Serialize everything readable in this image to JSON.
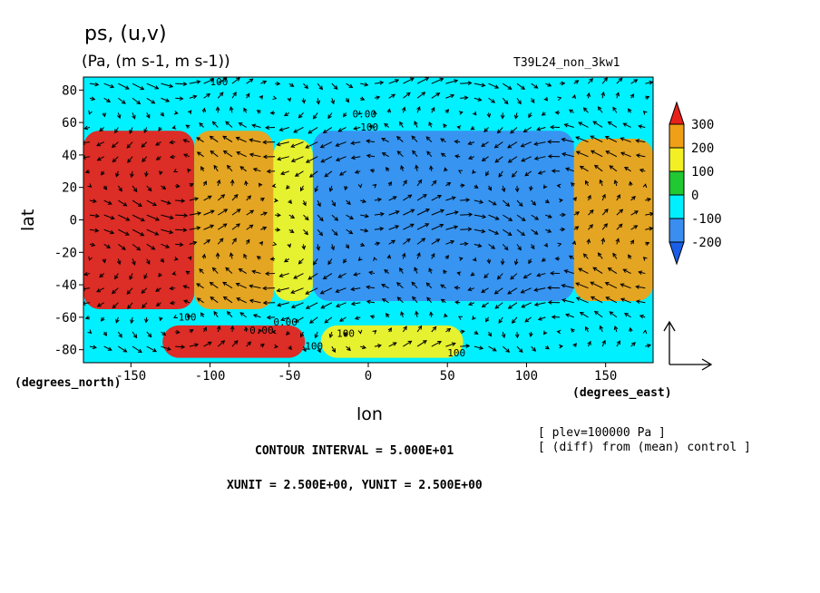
{
  "header": {
    "title": "ps, (u,v)",
    "units": "(Pa, (m s-1, m s-1))",
    "run": "T39L24_non_3kw1"
  },
  "footer": {
    "contour_interval": "CONTOUR INTERVAL = 5.000E+01",
    "units_line": "XUNIT = 2.500E+00, YUNIT = 2.500E+00",
    "plev": "[ plev=100000 Pa ]",
    "diff": "[ (diff) from (mean) control ]"
  },
  "chart_data": {
    "type": "heatmap",
    "title": "ps, (u,v)",
    "subtitle": "(Pa, (m s-1, m s-1))",
    "xlabel": "lon",
    "ylabel": "lat",
    "xunit_label": "(degrees_east)",
    "yunit_label": "(degrees_north)",
    "xlim": [
      -180,
      180
    ],
    "ylim": [
      -88,
      88
    ],
    "xticks": [
      -150,
      -100,
      -50,
      0,
      50,
      100,
      150
    ],
    "yticks": [
      80,
      60,
      40,
      20,
      0,
      -20,
      -40,
      -60,
      -80
    ],
    "colorbar": {
      "levels": [
        300,
        200,
        100,
        0,
        -100,
        -200
      ],
      "colors": [
        "#e8221a",
        "#f0a017",
        "#f2f025",
        "#20c832",
        "#00f0ff",
        "#3a8ef0",
        "#1a5ee8"
      ]
    },
    "contour_labels": [
      "100",
      "0.00",
      "100",
      "100",
      "100",
      "0.00",
      "0.00",
      "100",
      "100"
    ],
    "field_regions": [
      {
        "lon": [
          -180,
          -110
        ],
        "lat": [
          -55,
          55
        ],
        "value": 350
      },
      {
        "lon": [
          -110,
          -60
        ],
        "lat": [
          -55,
          55
        ],
        "value": 250
      },
      {
        "lon": [
          -60,
          -35
        ],
        "lat": [
          -50,
          50
        ],
        "value": 120
      },
      {
        "lon": [
          -35,
          130
        ],
        "lat": [
          -50,
          55
        ],
        "value": -180
      },
      {
        "lon": [
          130,
          180
        ],
        "lat": [
          -50,
          50
        ],
        "value": 200
      },
      {
        "lon": [
          -180,
          180
        ],
        "lat": [
          55,
          88
        ],
        "value": -80
      },
      {
        "lon": [
          -130,
          -40
        ],
        "lat": [
          -85,
          -65
        ],
        "value": 300
      },
      {
        "lon": [
          -30,
          60
        ],
        "lat": [
          -85,
          -65
        ],
        "value": 180
      }
    ]
  }
}
